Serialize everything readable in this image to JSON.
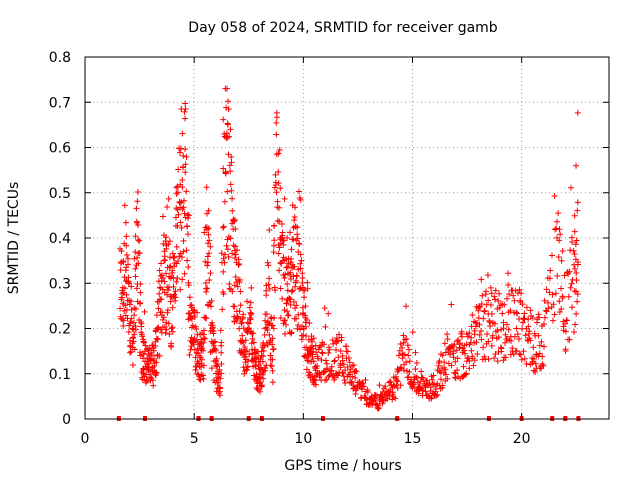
{
  "chart_data": {
    "type": "scatter",
    "title": "Day 058 of 2024, SRMTID for receiver gamb",
    "xlabel": "GPS time / hours",
    "ylabel": "SRMTID / TECUs",
    "xlim": [
      0,
      24
    ],
    "ylim": [
      0,
      0.8
    ],
    "xticks": [
      0,
      5,
      10,
      15,
      20
    ],
    "yticks": [
      0,
      0.1,
      0.2,
      0.3,
      0.4,
      0.5,
      0.6,
      0.7,
      0.8
    ],
    "grid": true,
    "marker": "plus",
    "color": "#ff0000",
    "series_envelope": [
      {
        "x": 1.6,
        "y": 0.32
      },
      {
        "x": 1.8,
        "y": 0.34
      },
      {
        "x": 2.0,
        "y": 0.3
      },
      {
        "x": 2.2,
        "y": 0.2
      },
      {
        "x": 2.4,
        "y": 0.45
      },
      {
        "x": 2.6,
        "y": 0.16
      },
      {
        "x": 2.8,
        "y": 0.14
      },
      {
        "x": 3.0,
        "y": 0.12
      },
      {
        "x": 3.2,
        "y": 0.14
      },
      {
        "x": 3.4,
        "y": 0.25
      },
      {
        "x": 3.6,
        "y": 0.38
      },
      {
        "x": 3.8,
        "y": 0.32
      },
      {
        "x": 4.0,
        "y": 0.28
      },
      {
        "x": 4.2,
        "y": 0.45
      },
      {
        "x": 4.4,
        "y": 0.5
      },
      {
        "x": 4.6,
        "y": 0.6
      },
      {
        "x": 4.8,
        "y": 0.22
      },
      {
        "x": 5.0,
        "y": 0.2
      },
      {
        "x": 5.2,
        "y": 0.16
      },
      {
        "x": 5.4,
        "y": 0.14
      },
      {
        "x": 5.6,
        "y": 0.45
      },
      {
        "x": 5.8,
        "y": 0.2
      },
      {
        "x": 6.0,
        "y": 0.12
      },
      {
        "x": 6.2,
        "y": 0.08
      },
      {
        "x": 6.4,
        "y": 0.65
      },
      {
        "x": 6.6,
        "y": 0.55
      },
      {
        "x": 6.8,
        "y": 0.4
      },
      {
        "x": 7.0,
        "y": 0.3
      },
      {
        "x": 7.2,
        "y": 0.2
      },
      {
        "x": 7.4,
        "y": 0.15
      },
      {
        "x": 7.6,
        "y": 0.25
      },
      {
        "x": 7.8,
        "y": 0.12
      },
      {
        "x": 8.0,
        "y": 0.1
      },
      {
        "x": 8.2,
        "y": 0.15
      },
      {
        "x": 8.4,
        "y": 0.3
      },
      {
        "x": 8.6,
        "y": 0.14
      },
      {
        "x": 8.8,
        "y": 0.65
      },
      {
        "x": 9.0,
        "y": 0.35
      },
      {
        "x": 9.2,
        "y": 0.3
      },
      {
        "x": 9.4,
        "y": 0.28
      },
      {
        "x": 9.6,
        "y": 0.4
      },
      {
        "x": 9.8,
        "y": 0.32
      },
      {
        "x": 10.0,
        "y": 0.25
      },
      {
        "x": 10.2,
        "y": 0.18
      },
      {
        "x": 10.4,
        "y": 0.14
      },
      {
        "x": 10.6,
        "y": 0.12
      },
      {
        "x": 11.0,
        "y": 0.15
      },
      {
        "x": 11.4,
        "y": 0.14
      },
      {
        "x": 11.8,
        "y": 0.16
      },
      {
        "x": 12.2,
        "y": 0.1
      },
      {
        "x": 12.6,
        "y": 0.08
      },
      {
        "x": 13.0,
        "y": 0.05
      },
      {
        "x": 13.4,
        "y": 0.04
      },
      {
        "x": 13.8,
        "y": 0.06
      },
      {
        "x": 14.2,
        "y": 0.08
      },
      {
        "x": 14.6,
        "y": 0.16
      },
      {
        "x": 15.0,
        "y": 0.12
      },
      {
        "x": 15.4,
        "y": 0.08
      },
      {
        "x": 15.8,
        "y": 0.07
      },
      {
        "x": 16.2,
        "y": 0.1
      },
      {
        "x": 16.6,
        "y": 0.16
      },
      {
        "x": 17.0,
        "y": 0.15
      },
      {
        "x": 17.4,
        "y": 0.17
      },
      {
        "x": 17.8,
        "y": 0.2
      },
      {
        "x": 18.2,
        "y": 0.22
      },
      {
        "x": 18.6,
        "y": 0.24
      },
      {
        "x": 19.0,
        "y": 0.23
      },
      {
        "x": 19.4,
        "y": 0.22
      },
      {
        "x": 19.8,
        "y": 0.25
      },
      {
        "x": 20.2,
        "y": 0.22
      },
      {
        "x": 20.6,
        "y": 0.18
      },
      {
        "x": 21.0,
        "y": 0.2
      },
      {
        "x": 21.6,
        "y": 0.4
      },
      {
        "x": 22.0,
        "y": 0.25
      },
      {
        "x": 22.4,
        "y": 0.35
      },
      {
        "x": 22.6,
        "y": 0.45
      }
    ],
    "gap_markers_x": [
      1.55,
      2.75,
      5.2,
      5.8,
      7.5,
      8.1,
      10.9,
      14.3,
      18.5,
      20.0,
      21.4,
      22.0,
      22.6
    ]
  }
}
